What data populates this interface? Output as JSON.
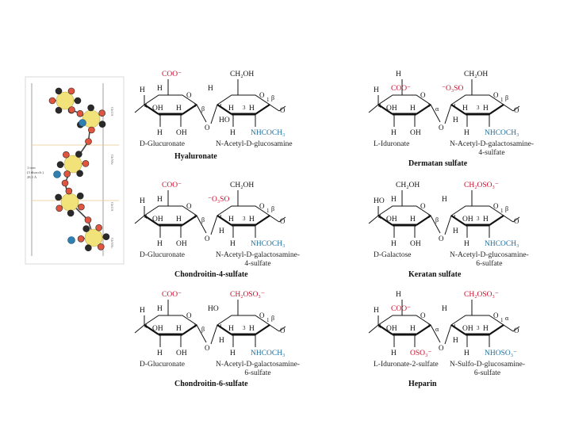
{
  "colors": {
    "acid": "#c8102e",
    "amino": "#1f6e9a",
    "ink": "#111111",
    "carbon": "#2a2a2a",
    "oxygen": "#e0553f",
    "sulfur": "#f2e27a",
    "nitrogen": "#2f7fb0"
  },
  "model_figure": {
    "label_lines": [
      "1 turn",
      "(3 disacch.)",
      "28.5 Å"
    ],
    "side_labels": [
      "GlcUA",
      "GlcNAc",
      "GlcUA",
      "GlcNAc"
    ]
  },
  "panels": [
    {
      "name": "Hyaluronate",
      "ring1": {
        "top": "COO⁻",
        "top_color": "acid",
        "left": "H",
        "upper_mid": "H",
        "c4_label": "4",
        "oh_mid": "OH",
        "h_mid": "H",
        "c1_label": "1",
        "bottom_left": "H",
        "bottom_right": "OH",
        "linkage": "β",
        "caption": "D-Glucuronate"
      },
      "ring2": {
        "top": "CH₂OH",
        "top_color": "ink",
        "left_sub": "H",
        "c4_label": "4",
        "h_mid": "H",
        "ho_mid": "HO",
        "h_right": "H",
        "c3_label": "3",
        "c1_label": "1",
        "bottom_left": "H",
        "bottom_right": "NHCOCH₃",
        "linkage": "β",
        "caption_lines": [
          "N-Acetyl-D-glucosamine"
        ]
      }
    },
    {
      "name": "Dermatan sulfate",
      "ring1": {
        "top": "H",
        "top_color": "ink",
        "left": "H",
        "upper_mid": "COO⁻",
        "c4_label": "4",
        "oh_mid": "OH",
        "h_mid": "H",
        "c1_label": "1",
        "bottom_left": "H",
        "bottom_right": "OH",
        "linkage": "α",
        "caption": "L-Iduronate"
      },
      "ring2": {
        "top": "CH₂OH",
        "top_color": "ink",
        "left_sub": "⁻O₃SO",
        "c4_label": "4",
        "h_mid": "H",
        "ho_mid": "H",
        "h_right": "H",
        "c3_label": "3",
        "c1_label": "1",
        "bottom_left": "H",
        "bottom_right": "NHCOCH₃",
        "linkage": "β",
        "caption_lines": [
          "N-Acetyl-D-galactosamine-",
          "4-sulfate"
        ]
      }
    },
    {
      "name": "Chondroitin-4-sulfate",
      "ring1": {
        "top": "COO⁻",
        "top_color": "acid",
        "left": "H",
        "upper_mid": "H",
        "c4_label": "4",
        "oh_mid": "OH",
        "h_mid": "H",
        "c1_label": "1",
        "bottom_left": "H",
        "bottom_right": "OH",
        "linkage": "β",
        "caption": "D-Glucuronate"
      },
      "ring2": {
        "top": "CH₂OH",
        "top_color": "ink",
        "left_sub": "⁻O₃SO",
        "c4_label": "4",
        "h_mid": "H",
        "ho_mid": "H",
        "h_right": "H",
        "c3_label": "3",
        "c1_label": "1",
        "bottom_left": "H",
        "bottom_right": "NHCOCH₃",
        "linkage": "β",
        "caption_lines": [
          "N-Acetyl-D-galactosamine-",
          "4-sulfate"
        ]
      }
    },
    {
      "name": "Keratan sulfate",
      "ring1": {
        "top": "CH₂OH",
        "top_color": "ink",
        "left": "HO",
        "upper_mid": "H",
        "c4_label": "4",
        "oh_mid": "OH",
        "h_mid": "H",
        "c1_label": "1",
        "bottom_left": "H",
        "bottom_right": "OH",
        "linkage": "β",
        "caption": "D-Galactose"
      },
      "ring2": {
        "top": "CH₂OSO₃⁻",
        "top_color": "ink",
        "left_sub": "H",
        "c4_label": "4",
        "h_mid": "OH",
        "ho_mid": "H",
        "h_right": "H",
        "c3_label": "3",
        "c1_label": "1",
        "bottom_left": "H",
        "bottom_right": "NHCOCH₃",
        "linkage": "β",
        "caption_lines": [
          "N-Acetyl-D-glucosamine-",
          "6-sulfate"
        ]
      }
    },
    {
      "name": "Chondroitin-6-sulfate",
      "ring1": {
        "top": "COO⁻",
        "top_color": "acid",
        "left": "H",
        "upper_mid": "H",
        "c4_label": "4",
        "oh_mid": "OH",
        "h_mid": "H",
        "c1_label": "1",
        "bottom_left": "H",
        "bottom_right": "OH",
        "linkage": "β",
        "caption": "D-Glucuronate"
      },
      "ring2": {
        "top": "CH₂OSO₃⁻",
        "top_color": "ink",
        "left_sub": "HO",
        "c4_label": "4",
        "h_mid": "H",
        "ho_mid": "H",
        "h_right": "H",
        "c3_label": "3",
        "c1_label": "1",
        "bottom_left": "H",
        "bottom_right": "NHCOCH₃",
        "linkage": "β",
        "caption_lines": [
          "N-Acetyl-D-galactosamine-",
          "6-sulfate"
        ]
      }
    },
    {
      "name": "Heparin",
      "ring1": {
        "top": "H",
        "top_color": "ink",
        "left": "H",
        "upper_mid": "COO⁻",
        "c4_label": "4",
        "oh_mid": "OH",
        "h_mid": "H",
        "c1_label": "1",
        "bottom_left": "H",
        "bottom_right": "OSO₃⁻",
        "linkage": "α",
        "caption": "L-Iduronate-2-sulfate"
      },
      "ring2": {
        "top": "CH₂OSO₃⁻",
        "top_color": "ink",
        "left_sub": "H",
        "c4_label": "4",
        "h_mid": "OH",
        "ho_mid": "H",
        "h_right": "H",
        "c3_label": "3",
        "c1_label": "1",
        "bottom_left": "H",
        "bottom_right": "NHOSO₃⁻",
        "linkage": "α",
        "caption_lines": [
          "N-Sulfo-D-glucosamine-",
          "6-sulfate"
        ]
      }
    }
  ]
}
